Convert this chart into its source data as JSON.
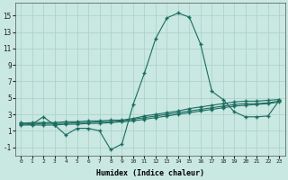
{
  "xlabel": "Humidex (Indice chaleur)",
  "xlim": [
    -0.5,
    23.5
  ],
  "ylim": [
    -2,
    16.5
  ],
  "yticks": [
    -1,
    1,
    3,
    5,
    7,
    9,
    11,
    13,
    15
  ],
  "xticks": [
    0,
    1,
    2,
    3,
    4,
    5,
    6,
    7,
    8,
    9,
    10,
    11,
    12,
    13,
    14,
    15,
    16,
    17,
    18,
    19,
    20,
    21,
    22,
    23
  ],
  "bg_color": "#c9e8e1",
  "grid_color": "#aacfca",
  "line_color": "#1a6b60",
  "main_line": [
    2.0,
    1.8,
    2.7,
    1.7,
    0.5,
    1.3,
    1.3,
    1.0,
    -1.3,
    -0.6,
    4.2,
    8.0,
    12.2,
    14.7,
    15.3,
    14.8,
    11.5,
    5.8,
    4.8,
    3.3,
    2.7,
    2.7,
    2.8,
    4.7
  ],
  "smooth_lines": [
    [
      1.7,
      1.7,
      1.7,
      1.7,
      1.8,
      1.8,
      1.9,
      1.9,
      2.0,
      2.1,
      2.2,
      2.4,
      2.6,
      2.8,
      3.0,
      3.2,
      3.4,
      3.6,
      3.8,
      4.0,
      4.1,
      4.2,
      4.3,
      4.5
    ],
    [
      1.8,
      1.8,
      1.9,
      1.9,
      1.9,
      2.0,
      2.0,
      2.1,
      2.1,
      2.2,
      2.4,
      2.6,
      2.8,
      3.0,
      3.2,
      3.4,
      3.6,
      3.8,
      4.0,
      4.2,
      4.3,
      4.3,
      4.4,
      4.6
    ],
    [
      1.9,
      2.0,
      2.0,
      2.0,
      2.1,
      2.1,
      2.2,
      2.2,
      2.3,
      2.3,
      2.5,
      2.8,
      3.0,
      3.2,
      3.4,
      3.7,
      3.9,
      4.1,
      4.3,
      4.5,
      4.6,
      4.6,
      4.7,
      4.8
    ]
  ],
  "marker": "+",
  "markersize": 2.5,
  "linewidth": 0.8,
  "xlabel_fontsize": 6,
  "tick_fontsize_x": 4.5,
  "tick_fontsize_y": 5.5
}
